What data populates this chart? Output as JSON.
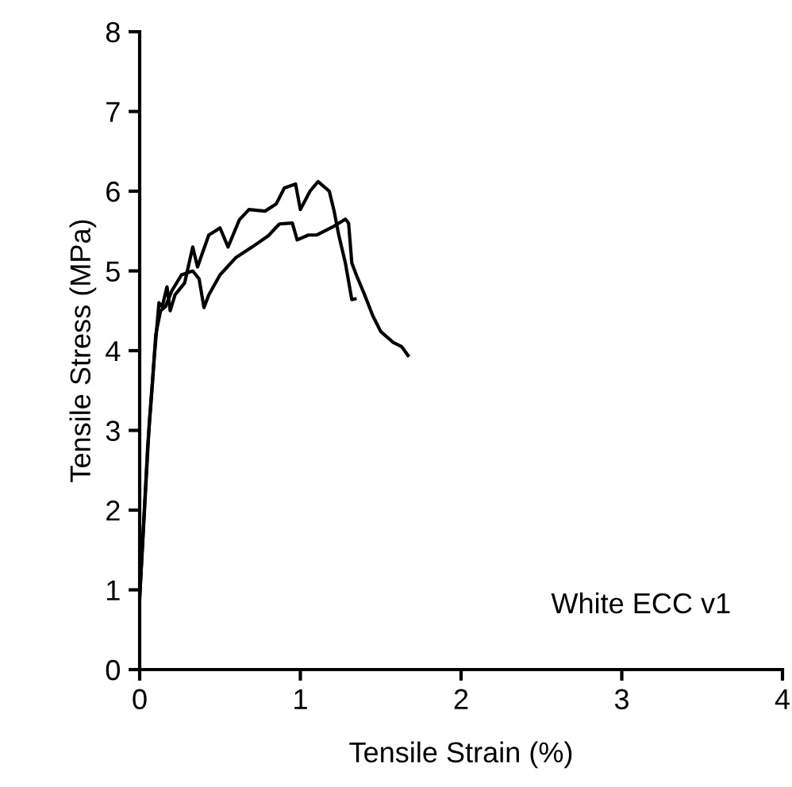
{
  "chart_data": {
    "type": "line",
    "xlabel": "Tensile Strain (%)",
    "ylabel": "Tensile Stress (MPa)",
    "xlim": [
      0,
      4
    ],
    "ylim": [
      0,
      8
    ],
    "xticks": [
      0,
      1,
      2,
      3,
      4
    ],
    "yticks": [
      0,
      1,
      2,
      3,
      4,
      5,
      6,
      7,
      8
    ],
    "grid": false,
    "legend": false,
    "marker": "none",
    "line_style": "solid",
    "annotations": [
      "White ECC v1"
    ],
    "series": [
      {
        "color": "#000000",
        "x": [
          0,
          0.06,
          0.09,
          0.12,
          0.14,
          0.17,
          0.19,
          0.22,
          0.28,
          0.33,
          0.36,
          0.43,
          0.47,
          0.5,
          0.55,
          0.62,
          0.68,
          0.78,
          0.85,
          0.9,
          0.97,
          1.0,
          1.06,
          1.11,
          1.18,
          1.21,
          1.24,
          1.28,
          1.32,
          1.34
        ],
        "values": [
          0.9,
          3.1,
          3.9,
          4.6,
          4.55,
          4.8,
          4.5,
          4.7,
          4.85,
          5.3,
          5.05,
          5.45,
          5.5,
          5.54,
          5.3,
          5.64,
          5.77,
          5.75,
          5.84,
          6.04,
          6.09,
          5.77,
          6.0,
          6.12,
          6.0,
          5.75,
          5.44,
          5.1,
          4.64,
          4.65
        ]
      },
      {
        "color": "#000000",
        "x": [
          0,
          0.05,
          0.08,
          0.1,
          0.13,
          0.16,
          0.2,
          0.26,
          0.33,
          0.37,
          0.4,
          0.43,
          0.5,
          0.6,
          0.7,
          0.8,
          0.87,
          0.95,
          0.98,
          1.05,
          1.1,
          1.2,
          1.28,
          1.3,
          1.32,
          1.35,
          1.4,
          1.45,
          1.5,
          1.58,
          1.63,
          1.67
        ],
        "values": [
          0.9,
          2.8,
          3.6,
          4.2,
          4.5,
          4.55,
          4.75,
          4.95,
          5.0,
          4.9,
          4.54,
          4.7,
          4.95,
          5.17,
          5.3,
          5.44,
          5.59,
          5.6,
          5.39,
          5.45,
          5.45,
          5.55,
          5.65,
          5.6,
          5.1,
          4.94,
          4.7,
          4.44,
          4.24,
          4.1,
          4.05,
          3.94
        ]
      }
    ]
  }
}
